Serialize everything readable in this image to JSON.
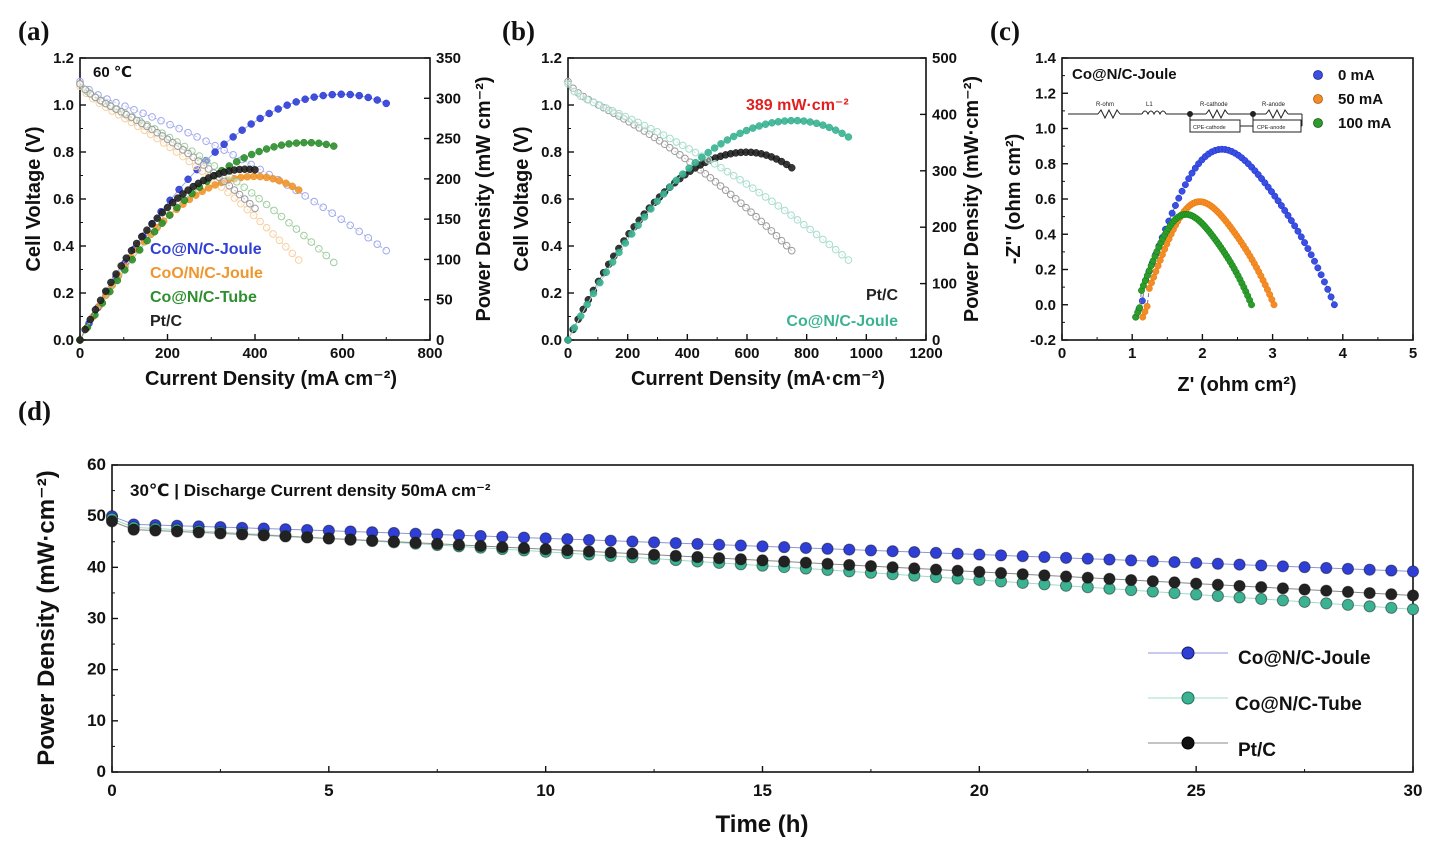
{
  "colors": {
    "joule_blue": "#2f3fd6",
    "oxide_orange": "#f0962e",
    "tube_green": "#2e8f2e",
    "ptc_black": "#222222",
    "teal": "#3bb393",
    "red_annot": "#e02020",
    "eis_blue": "#3b4fe0",
    "eis_orange": "#f28c28",
    "eis_green": "#2f9b2f"
  },
  "chart_data": [
    {
      "id": "a",
      "panel_label": "(a)",
      "type": "line",
      "xlabel": "Current Density (mA cm⁻²)",
      "ylabel_left": "Cell Voltage (V)",
      "ylabel_right": "Power Density (mW cm⁻²)",
      "xlim": [
        0,
        800
      ],
      "ylim_left": [
        0,
        1.2
      ],
      "ylim_right": [
        0,
        350
      ],
      "x_ticks": [
        "0",
        "200",
        "400",
        "600",
        "800"
      ],
      "y_left_ticks": [
        "0.0",
        "0.2",
        "0.4",
        "0.6",
        "0.8",
        "1.0",
        "1.2"
      ],
      "y_right_ticks": [
        "0",
        "50",
        "100",
        "150",
        "200",
        "250",
        "300",
        "350"
      ],
      "annotation": "60 ℃",
      "series": [
        {
          "name": "Co@N/C-Joule",
          "color_key": "joule_blue",
          "x_max": 700,
          "ocv": 1.1,
          "v_end": 0.42,
          "p_peak": 305,
          "x_peak": 600
        },
        {
          "name": "CoO/N/C-Joule",
          "color_key": "oxide_orange",
          "x_max": 500,
          "ocv": 1.08,
          "v_end": 0.38,
          "p_peak": 203,
          "x_peak": 400
        },
        {
          "name": "Co@N/C-Tube",
          "color_key": "tube_green",
          "x_max": 580,
          "ocv": 1.09,
          "v_end": 0.37,
          "p_peak": 245,
          "x_peak": 520
        },
        {
          "name": "Pt/C",
          "color_key": "ptc_black",
          "x_max": 400,
          "ocv": 1.09,
          "v_end": 0.6,
          "p_peak": 212,
          "x_peak": 380
        }
      ]
    },
    {
      "id": "b",
      "panel_label": "(b)",
      "type": "line",
      "xlabel": "Current Density (mA·cm⁻²)",
      "ylabel_left": "Cell Voltage (V)",
      "ylabel_right": "Power Density (mW·cm⁻²)",
      "xlim": [
        0,
        1200
      ],
      "ylim_left": [
        0,
        1.2
      ],
      "ylim_right": [
        0,
        500
      ],
      "x_ticks": [
        "0",
        "200",
        "400",
        "600",
        "800",
        "1000",
        "1200"
      ],
      "y_left_ticks": [
        "0.0",
        "0.2",
        "0.4",
        "0.6",
        "0.8",
        "1.0",
        "1.2"
      ],
      "y_right_ticks": [
        "0",
        "100",
        "200",
        "300",
        "400",
        "500"
      ],
      "annotation": "389 mW·cm⁻²",
      "series": [
        {
          "name": "Pt/C",
          "color_key": "ptc_black",
          "x_max": 750,
          "ocv": 1.1,
          "v_end": 0.42,
          "p_peak": 333,
          "x_peak": 600
        },
        {
          "name": "Co@N/C-Joule",
          "color_key": "teal",
          "x_max": 940,
          "ocv": 1.09,
          "v_end": 0.38,
          "p_peak": 389,
          "x_peak": 760
        }
      ]
    },
    {
      "id": "c",
      "panel_label": "(c)",
      "type": "scatter",
      "xlabel": "Z' (ohm cm²)",
      "ylabel": "-Z'' (ohm cm²)",
      "xlim": [
        0,
        5
      ],
      "ylim": [
        -0.2,
        1.4
      ],
      "x_ticks": [
        "0",
        "1",
        "2",
        "3",
        "4",
        "5"
      ],
      "y_ticks": [
        "-0.2",
        "0.0",
        "0.2",
        "0.4",
        "0.6",
        "0.8",
        "1.0",
        "1.2",
        "1.4"
      ],
      "annotation": "Co@N/C-Joule",
      "circuit_labels": [
        "R-ohm",
        "L1",
        "R-cathode",
        "R-anode",
        "CPE-cathode",
        "CPE-anode"
      ],
      "series": [
        {
          "name": "0 mA",
          "color_key": "eis_blue",
          "z_start": 1.05,
          "z_end": 3.88,
          "peak": 0.86
        },
        {
          "name": "50 mA",
          "color_key": "eis_orange",
          "z_start": 1.15,
          "z_end": 3.02,
          "peak": 0.57
        },
        {
          "name": "100 mA",
          "color_key": "eis_green",
          "z_start": 1.05,
          "z_end": 2.7,
          "peak": 0.5
        }
      ]
    },
    {
      "id": "d",
      "panel_label": "(d)",
      "type": "line",
      "xlabel": "Time (h)",
      "ylabel": "Power Density (mW·cm⁻²)",
      "xlim": [
        0,
        30
      ],
      "ylim": [
        0,
        60
      ],
      "x_ticks": [
        "0",
        "5",
        "10",
        "15",
        "20",
        "25",
        "30"
      ],
      "y_ticks": [
        "0",
        "10",
        "20",
        "30",
        "40",
        "50",
        "60"
      ],
      "annotation": "30℃ | Discharge Current density 50mA cm⁻²",
      "series": [
        {
          "name": "Co@N/C-Joule",
          "color_key": "joule_blue",
          "start": 50.0,
          "end": 39.2
        },
        {
          "name": "Co@N/C-Tube",
          "color_key": "teal",
          "start": 49.5,
          "end": 31.8
        },
        {
          "name": "Pt/C",
          "color_key": "ptc_black",
          "start": 49.0,
          "end": 34.5
        }
      ]
    }
  ]
}
